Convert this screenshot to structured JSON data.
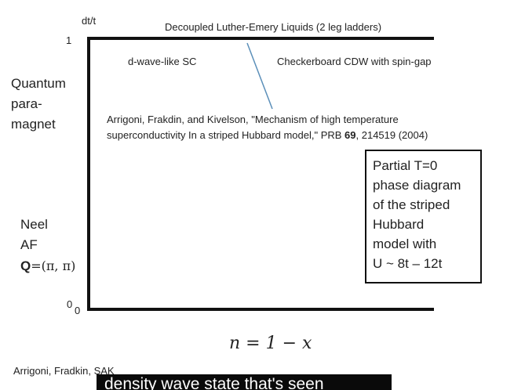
{
  "axis": {
    "y_label": "dt/t",
    "y_top_tick": "1",
    "y_bottom_tick": "0",
    "x_origin_tick": "0",
    "x_label": "n = 1 − x"
  },
  "phases": {
    "top_line": "Decoupled Luther-Emery Liquids (2 leg ladders)",
    "left_region": "d-wave-like SC",
    "right_region": "Checkerboard CDW with spin-gap",
    "left_upper": [
      "Quantum",
      "para-",
      "magnet"
    ],
    "left_lower_1": "Neel",
    "left_lower_2": "AF",
    "left_lower_3_bold": "Q",
    "left_lower_3_rest": "=(π, π)"
  },
  "reference": {
    "line1": "Arrigoni, Frakdin, and Kivelson, \"Mechanism of high temperature",
    "line2_pre": "superconductivity In a striped Hubbard model,\" PRB ",
    "line2_bold": "69",
    "line2_post": ", 214519 (2004)"
  },
  "box_lines": [
    "Partial T=0",
    "phase diagram",
    "of the striped",
    "Hubbard",
    "model with",
    "U ~ 8t – 12t"
  ],
  "footer_credit": "Arrigoni, Fradkin, SAK",
  "caption": "density wave state that's seen",
  "colors": {
    "pointer_line": "#5b8fb9",
    "caption_bg": "#0a0a0a"
  }
}
